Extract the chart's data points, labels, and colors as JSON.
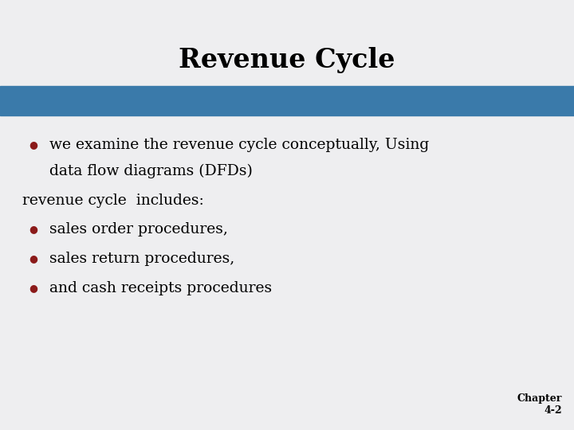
{
  "title": "Revenue Cycle",
  "title_fontsize": 24,
  "title_fontweight": "bold",
  "title_color": "#000000",
  "background_color": "#eeeef0",
  "blue_bar_color": "#3a7aaa",
  "bullet_color": "#8b1a1a",
  "bullet_char": "●",
  "text_color": "#000000",
  "text_fontsize": 13.5,
  "bullet1_line1": "we examine the revenue cycle conceptually, Using",
  "bullet1_line2": "data flow diagrams (DFDs)",
  "non_bullet_text": "revenue cycle  includes:",
  "bullet2": "sales order procedures,",
  "bullet3": "sales return procedures,",
  "bullet4": "and cash receipts procedures",
  "footer_text": "Chapter\n4-2",
  "footer_fontsize": 9,
  "footer_fontweight": "bold"
}
